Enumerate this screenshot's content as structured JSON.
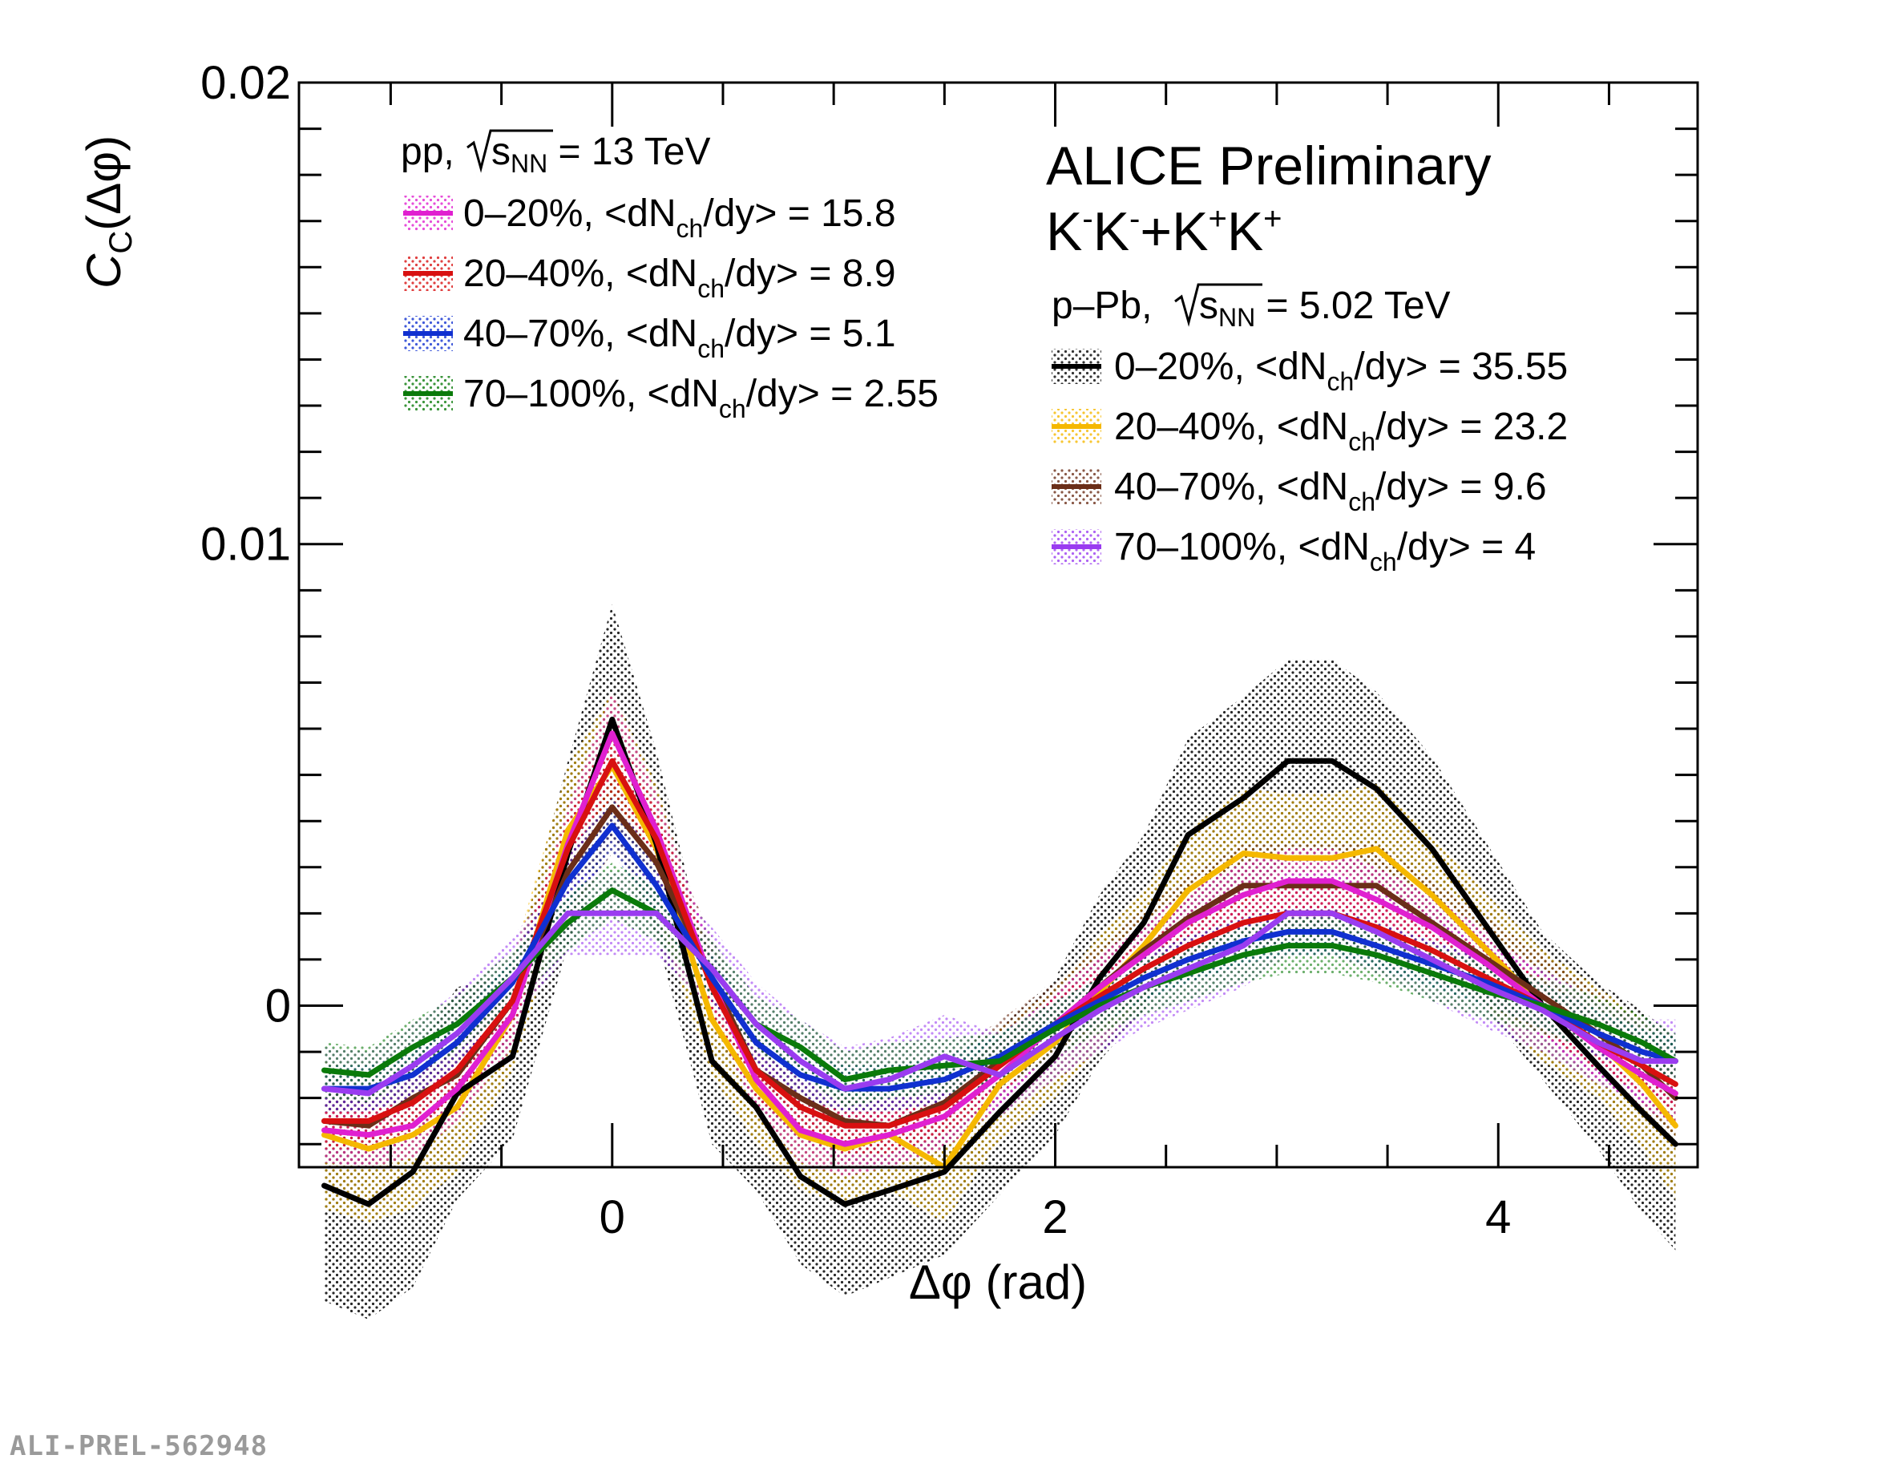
{
  "chart_data": {
    "type": "line",
    "title": "",
    "xlabel": "Δφ (rad)",
    "ylabel_main": "C",
    "ylabel_sub": "C",
    "ylabel_arg": "(Δφ)",
    "xlim": [
      -1.414,
      4.9
    ],
    "ylim": [
      -0.0035,
      0.02
    ],
    "x_ticks": [
      0,
      2,
      4
    ],
    "x_tick_labels": [
      "0",
      "2",
      "4"
    ],
    "y_ticks": [
      0,
      0.01,
      0.02
    ],
    "y_tick_labels": [
      "0",
      "0.01",
      "0.02"
    ],
    "experiment_label": "ALICE Preliminary",
    "pair_label": {
      "k1": "K",
      "s1": "-",
      "k2": "K",
      "s2": "-",
      "plus": "+",
      "k3": "K",
      "s3": "+",
      "k4": "K",
      "s4": "+"
    },
    "x": [
      -1.3,
      -1.1,
      -0.9,
      -0.7,
      -0.45,
      -0.2,
      0.0,
      0.2,
      0.45,
      0.65,
      0.85,
      1.05,
      1.25,
      1.5,
      1.75,
      2.0,
      2.2,
      2.4,
      2.6,
      2.85,
      3.05,
      3.25,
      3.45,
      3.7,
      3.95,
      4.2,
      4.45,
      4.65,
      4.8
    ],
    "legend_pp": {
      "header_prefix": "pp, ",
      "header_s": "s",
      "header_sub": "NN",
      "header_suffix": " = 13 TeV",
      "entries": [
        {
          "cls": "0–20%, <dN",
          "sub": "ch",
          "rest": "/dy> = 15.8"
        },
        {
          "cls": "20–40%, <dN",
          "sub": "ch",
          "rest": "/dy> = 8.9"
        },
        {
          "cls": "40–70%, <dN",
          "sub": "ch",
          "rest": "/dy> = 5.1"
        },
        {
          "cls": "70–100%, <dN",
          "sub": "ch",
          "rest": "/dy> = 2.55"
        }
      ]
    },
    "legend_ppb": {
      "header_prefix": "p–Pb, ",
      "header_s": "s",
      "header_sub": "NN",
      "header_suffix": " = 5.02 TeV",
      "entries": [
        {
          "cls": "0–20%, <dN",
          "sub": "ch",
          "rest": "/dy> = 35.55"
        },
        {
          "cls": "20–40%, <dN",
          "sub": "ch",
          "rest": "/dy> = 23.2"
        },
        {
          "cls": "40–70%, <dN",
          "sub": "ch",
          "rest": "/dy> = 9.6"
        },
        {
          "cls": "70–100%, <dN",
          "sub": "ch",
          "rest": "/dy> = 4"
        }
      ]
    },
    "series": [
      {
        "name": "pp 0–20%",
        "system": "pp",
        "color": "#e020d0",
        "values": [
          -0.0027,
          -0.0028,
          -0.0026,
          -0.0018,
          -0.0002,
          0.0035,
          0.0059,
          0.0038,
          0.0005,
          -0.0016,
          -0.0027,
          -0.003,
          -0.0028,
          -0.0024,
          -0.0015,
          -0.0004,
          0.0004,
          0.0011,
          0.0018,
          0.0024,
          0.0027,
          0.0027,
          0.0023,
          0.0017,
          0.0009,
          0.0,
          -0.0009,
          -0.0015,
          -0.0019
        ],
        "band": [
          0.0007,
          0.0007,
          0.0007,
          0.0007,
          0.0007,
          0.0008,
          0.0009,
          0.0008,
          0.0007,
          0.0007,
          0.0007,
          0.0007,
          0.0007,
          0.0007,
          0.0007,
          0.0007,
          0.0007,
          0.0007,
          0.0007,
          0.0007,
          0.0007,
          0.0007,
          0.0007,
          0.0007,
          0.0007,
          0.0007,
          0.0007,
          0.0007,
          0.0007
        ]
      },
      {
        "name": "pp 20–40%",
        "system": "pp",
        "color": "#d81010",
        "values": [
          -0.0025,
          -0.0025,
          -0.0021,
          -0.0014,
          0.0001,
          0.0034,
          0.0053,
          0.0036,
          0.0004,
          -0.0014,
          -0.0022,
          -0.0026,
          -0.0026,
          -0.0022,
          -0.0013,
          -0.0004,
          0.0002,
          0.0008,
          0.0013,
          0.0018,
          0.002,
          0.002,
          0.0017,
          0.0012,
          0.0006,
          0.0,
          -0.0008,
          -0.0013,
          -0.0017
        ],
        "band": [
          0.0006,
          0.0006,
          0.0006,
          0.0006,
          0.0006,
          0.0007,
          0.0008,
          0.0007,
          0.0006,
          0.0006,
          0.0006,
          0.0006,
          0.0006,
          0.0006,
          0.0006,
          0.0006,
          0.0006,
          0.0006,
          0.0006,
          0.0006,
          0.0006,
          0.0006,
          0.0006,
          0.0006,
          0.0006,
          0.0006,
          0.0006,
          0.0006,
          0.0006
        ]
      },
      {
        "name": "pp 40–70%",
        "system": "pp",
        "color": "#1030d0",
        "values": [
          -0.0018,
          -0.0018,
          -0.0015,
          -0.0008,
          0.0005,
          0.0027,
          0.0039,
          0.0026,
          0.0006,
          -0.0008,
          -0.0015,
          -0.0018,
          -0.0018,
          -0.0016,
          -0.0011,
          -0.0004,
          0.0001,
          0.0006,
          0.001,
          0.0014,
          0.0016,
          0.0016,
          0.0013,
          0.0009,
          0.0005,
          0.0,
          -0.0006,
          -0.001,
          -0.0012
        ],
        "band": [
          0.0005,
          0.0005,
          0.0005,
          0.0005,
          0.0005,
          0.0006,
          0.0006,
          0.0006,
          0.0005,
          0.0005,
          0.0005,
          0.0005,
          0.0005,
          0.0005,
          0.0005,
          0.0005,
          0.0005,
          0.0005,
          0.0005,
          0.0005,
          0.0005,
          0.0005,
          0.0005,
          0.0005,
          0.0005,
          0.0005,
          0.0005,
          0.0005,
          0.0005
        ]
      },
      {
        "name": "pp 70–100%",
        "system": "pp",
        "color": "#0a7a0a",
        "values": [
          -0.0014,
          -0.0015,
          -0.0009,
          -0.0004,
          0.0006,
          0.0018,
          0.0025,
          0.002,
          0.0008,
          -0.0004,
          -0.0009,
          -0.0016,
          -0.0014,
          -0.0013,
          -0.0012,
          -0.0005,
          0.0,
          0.0004,
          0.0007,
          0.0011,
          0.0013,
          0.0013,
          0.0011,
          0.0007,
          0.0003,
          0.0,
          -0.0004,
          -0.0008,
          -0.0012
        ],
        "band": [
          0.0006,
          0.0006,
          0.0006,
          0.0006,
          0.0006,
          0.0006,
          0.0006,
          0.0006,
          0.0006,
          0.0006,
          0.0006,
          0.0006,
          0.0006,
          0.0006,
          0.0006,
          0.0006,
          0.0006,
          0.0006,
          0.0006,
          0.0006,
          0.0006,
          0.0006,
          0.0006,
          0.0006,
          0.0006,
          0.0006,
          0.0006,
          0.0006,
          0.0006
        ]
      },
      {
        "name": "p–Pb 0–20%",
        "system": "pPb",
        "color": "#000000",
        "values": [
          -0.0039,
          -0.0043,
          -0.0036,
          -0.0019,
          -0.0011,
          0.0033,
          0.0062,
          0.0035,
          -0.0012,
          -0.0022,
          -0.0037,
          -0.0043,
          -0.004,
          -0.0036,
          -0.0023,
          -0.0011,
          0.0006,
          0.0018,
          0.0037,
          0.0045,
          0.0053,
          0.0053,
          0.0047,
          0.0034,
          0.0017,
          0.0,
          -0.0013,
          -0.0023,
          -0.003
        ],
        "band": [
          0.0025,
          0.0025,
          0.0025,
          0.0023,
          0.0018,
          0.002,
          0.0025,
          0.002,
          0.0018,
          0.0018,
          0.0019,
          0.002,
          0.0019,
          0.0018,
          0.0018,
          0.0017,
          0.0018,
          0.0019,
          0.0021,
          0.0022,
          0.0022,
          0.0022,
          0.0021,
          0.002,
          0.0018,
          0.0016,
          0.0018,
          0.0022,
          0.0023
        ]
      },
      {
        "name": "p–Pb 20–40%",
        "system": "pPb",
        "color": "#f5b800",
        "values": [
          -0.0028,
          -0.0031,
          -0.0028,
          -0.0022,
          -0.0002,
          0.0038,
          0.0052,
          0.0034,
          -0.0003,
          -0.0018,
          -0.0028,
          -0.0031,
          -0.0028,
          -0.0035,
          -0.0017,
          -0.0008,
          0.0003,
          0.0013,
          0.0025,
          0.0033,
          0.0032,
          0.0032,
          0.0034,
          0.0024,
          0.0012,
          0.0,
          -0.0008,
          -0.0017,
          -0.0026
        ],
        "band": [
          0.0016,
          0.0016,
          0.0016,
          0.0014,
          0.0012,
          0.0014,
          0.0016,
          0.0014,
          0.0012,
          0.0012,
          0.0012,
          0.0012,
          0.0012,
          0.0012,
          0.0012,
          0.0012,
          0.0012,
          0.0012,
          0.0013,
          0.0014,
          0.0014,
          0.0014,
          0.0014,
          0.0013,
          0.0012,
          0.0012,
          0.0012,
          0.0014,
          0.0016
        ]
      },
      {
        "name": "p–Pb 40–70%",
        "system": "pPb",
        "color": "#6b2e18",
        "values": [
          -0.0025,
          -0.0026,
          -0.002,
          -0.0015,
          0.0001,
          0.0029,
          0.0043,
          0.0031,
          0.0006,
          -0.0014,
          -0.002,
          -0.0025,
          -0.0026,
          -0.0021,
          -0.0012,
          -0.0004,
          0.0004,
          0.0012,
          0.0019,
          0.0026,
          0.0026,
          0.0026,
          0.0026,
          0.0018,
          0.001,
          0.0002,
          -0.0006,
          -0.0013,
          -0.002
        ],
        "band": [
          0.0009,
          0.0009,
          0.0009,
          0.0009,
          0.0009,
          0.001,
          0.001,
          0.001,
          0.0009,
          0.0009,
          0.0009,
          0.0009,
          0.0009,
          0.0009,
          0.0009,
          0.0009,
          0.0009,
          0.0009,
          0.0009,
          0.0009,
          0.0009,
          0.0009,
          0.0009,
          0.0009,
          0.0009,
          0.0009,
          0.0009,
          0.0009,
          0.0009
        ]
      },
      {
        "name": "p–Pb 70–100%",
        "system": "pPb",
        "color": "#9a3cf0",
        "values": [
          -0.0018,
          -0.0019,
          -0.0013,
          -0.0006,
          0.0006,
          0.002,
          0.002,
          0.002,
          0.0008,
          -0.0004,
          -0.0012,
          -0.0018,
          -0.0016,
          -0.0011,
          -0.0015,
          -0.0007,
          -0.0001,
          0.0004,
          0.0008,
          0.0013,
          0.002,
          0.002,
          0.0016,
          0.001,
          0.0004,
          -0.0001,
          -0.0008,
          -0.0012,
          -0.0012
        ],
        "band": [
          0.0009,
          0.0009,
          0.0009,
          0.0009,
          0.0009,
          0.0009,
          0.0009,
          0.0009,
          0.0009,
          0.0009,
          0.0009,
          0.0009,
          0.0009,
          0.0009,
          0.0009,
          0.0009,
          0.0009,
          0.0009,
          0.0009,
          0.0009,
          0.0009,
          0.0009,
          0.0009,
          0.0009,
          0.0009,
          0.0009,
          0.0009,
          0.0009,
          0.0009
        ]
      }
    ]
  },
  "watermark": "ALI-PREL-562948"
}
